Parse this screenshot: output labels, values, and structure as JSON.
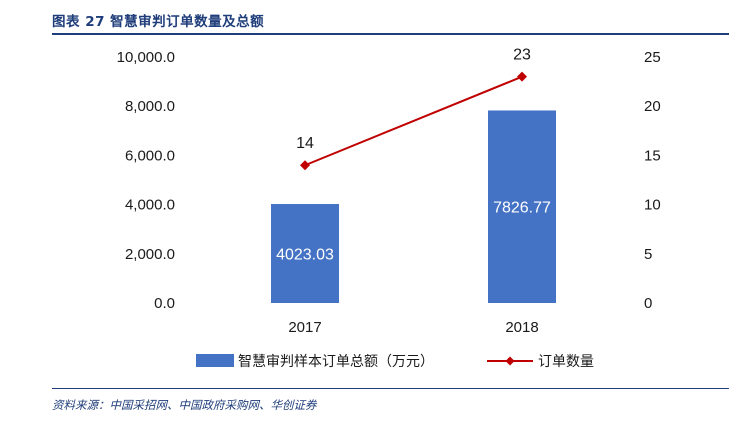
{
  "header": {
    "caption": "图表 27  智慧审判订单数量及总额"
  },
  "footer": {
    "source": "资料来源：中国采招网、中国政府采购网、华创证券"
  },
  "colors": {
    "bar": "#4472c4",
    "line": "#c00000",
    "caption": "#1f3d7a",
    "bar_label": "#ffffff",
    "line_label": "#1a1a1a"
  },
  "chart_data": {
    "type": "bar",
    "categories": [
      "2017",
      "2018"
    ],
    "series": [
      {
        "name": "智慧审判样本订单总额（万元）",
        "type": "bar",
        "axis": "left",
        "values": [
          4023.03,
          7826.77
        ],
        "labels": [
          "4023.03",
          "7826.77"
        ]
      },
      {
        "name": "订单数量",
        "type": "line",
        "axis": "right",
        "values": [
          14,
          23
        ],
        "labels": [
          "14",
          "23"
        ],
        "marker": "diamond"
      }
    ],
    "y_left": {
      "range": [
        0,
        10000
      ],
      "ticks": [
        0,
        2000,
        4000,
        6000,
        8000,
        10000
      ],
      "tick_labels": [
        "0.0",
        "2,000.0",
        "4,000.0",
        "6,000.0",
        "8,000.0",
        "10,000.0"
      ]
    },
    "y_right": {
      "range": [
        0,
        25
      ],
      "ticks": [
        0,
        5,
        10,
        15,
        20,
        25
      ],
      "tick_labels": [
        "0",
        "5",
        "10",
        "15",
        "20",
        "25"
      ]
    },
    "grid": false,
    "legend_position": "bottom"
  }
}
